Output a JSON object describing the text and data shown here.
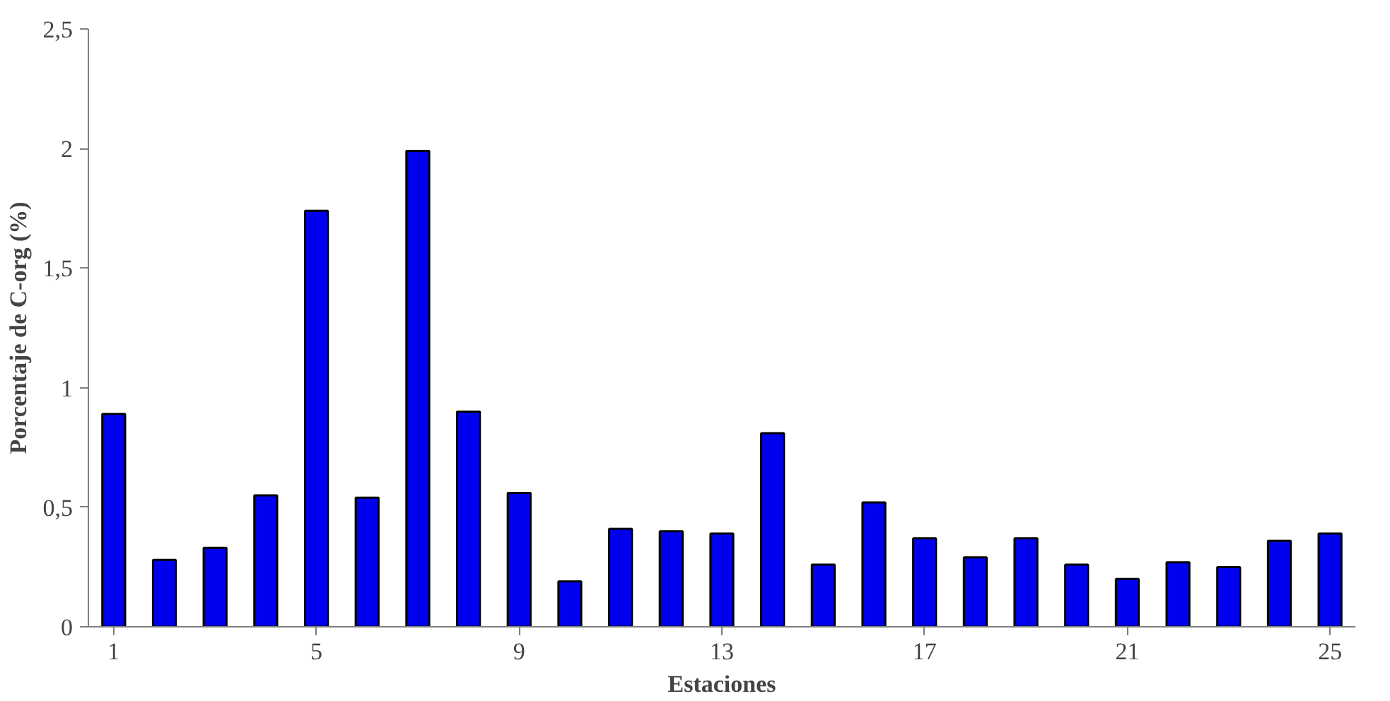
{
  "chart_data": {
    "type": "bar",
    "xlabel": "Estaciones",
    "ylabel": "Porcentaje de C-org (%)",
    "categories": [
      "1",
      null,
      null,
      null,
      "5",
      null,
      null,
      null,
      "9",
      null,
      null,
      null,
      "13",
      null,
      null,
      null,
      "17",
      null,
      null,
      null,
      "21",
      null,
      null,
      null,
      "25"
    ],
    "values": [
      0.89,
      0.28,
      0.33,
      0.55,
      1.74,
      0.54,
      1.99,
      0.9,
      0.56,
      0.19,
      0.41,
      0.4,
      0.39,
      0.81,
      0.26,
      0.52,
      0.37,
      0.29,
      0.37,
      0.26,
      0.2,
      0.27,
      0.25,
      0.36,
      0.39
    ],
    "color": "#0000ee",
    "ylim": [
      0,
      2.5
    ],
    "yticks": [
      0,
      {
        "value": 0.5,
        "label": "0,5"
      },
      1,
      {
        "value": 1.5,
        "label": "1,5"
      },
      2,
      {
        "value": 2.5,
        "label": "2,5"
      }
    ],
    "grid": false
  }
}
